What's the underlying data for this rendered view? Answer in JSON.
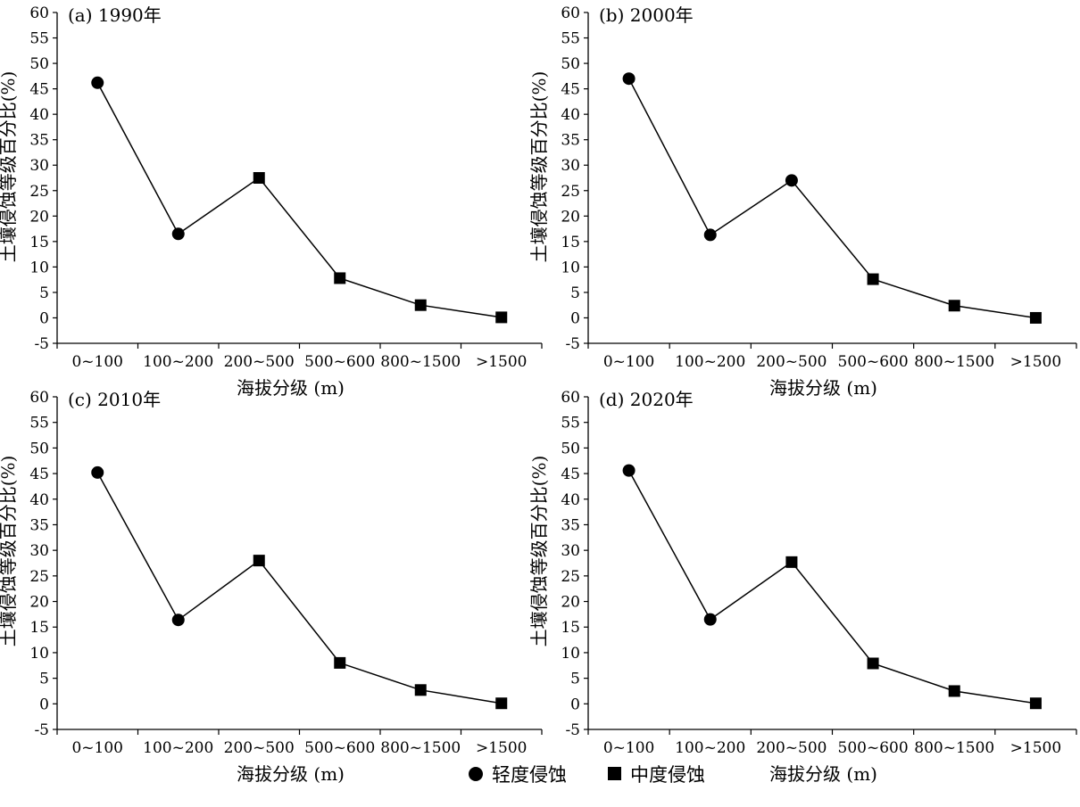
{
  "figure": {
    "legend": {
      "items": [
        {
          "label": "轻度侵蚀",
          "marker": "circle-icon"
        },
        {
          "label": "中度侵蚀",
          "marker": "square-icon"
        }
      ]
    }
  },
  "chart_data": [
    {
      "type": "line",
      "title": "(a) 1990年",
      "xlabel": "海拔分级 (m)",
      "ylabel": "土壤侵蚀等级百分比(%)",
      "categories": [
        "0~100",
        "100~200",
        "200~500",
        "500~600",
        "800~1500",
        ">1500"
      ],
      "values": [
        46.2,
        16.5,
        27.5,
        7.8,
        2.5,
        0.1
      ],
      "markers": [
        "circle",
        "circle",
        "square",
        "square",
        "square",
        "square"
      ],
      "ylim": [
        -5,
        60
      ],
      "yticks": [
        -5,
        0,
        5,
        10,
        15,
        20,
        25,
        30,
        35,
        40,
        45,
        50,
        55,
        60
      ],
      "grid": false
    },
    {
      "type": "line",
      "title": "(b) 2000年",
      "xlabel": "海拔分级 (m)",
      "ylabel": "土壤侵蚀等级百分比(%)",
      "categories": [
        "0~100",
        "100~200",
        "200~500",
        "500~600",
        "800~1500",
        ">1500"
      ],
      "values": [
        47.0,
        16.3,
        27.0,
        7.6,
        2.4,
        0.0
      ],
      "markers": [
        "circle",
        "circle",
        "circle",
        "square",
        "square",
        "square"
      ],
      "ylim": [
        -5,
        60
      ],
      "yticks": [
        -5,
        0,
        5,
        10,
        15,
        20,
        25,
        30,
        35,
        40,
        45,
        50,
        55,
        60
      ],
      "grid": false
    },
    {
      "type": "line",
      "title": "(c) 2010年",
      "xlabel": "海拔分级 (m)",
      "ylabel": "土壤侵蚀等级百分比(%)",
      "categories": [
        "0~100",
        "100~200",
        "200~500",
        "500~600",
        "800~1500",
        ">1500"
      ],
      "values": [
        45.2,
        16.4,
        28.0,
        8.0,
        2.7,
        0.1
      ],
      "markers": [
        "circle",
        "circle",
        "square",
        "square",
        "square",
        "square"
      ],
      "ylim": [
        -5,
        60
      ],
      "yticks": [
        -5,
        0,
        5,
        10,
        15,
        20,
        25,
        30,
        35,
        40,
        45,
        50,
        55,
        60
      ],
      "grid": false
    },
    {
      "type": "line",
      "title": "(d) 2020年",
      "xlabel": "海拔分级 (m)",
      "ylabel": "土壤侵蚀等级百分比(%)",
      "categories": [
        "0~100",
        "100~200",
        "200~500",
        "500~600",
        "800~1500",
        ">1500"
      ],
      "values": [
        45.6,
        16.5,
        27.7,
        7.9,
        2.5,
        0.1
      ],
      "markers": [
        "circle",
        "circle",
        "square",
        "square",
        "square",
        "square"
      ],
      "ylim": [
        -5,
        60
      ],
      "yticks": [
        -5,
        0,
        5,
        10,
        15,
        20,
        25,
        30,
        35,
        40,
        45,
        50,
        55,
        60
      ],
      "grid": false
    }
  ]
}
